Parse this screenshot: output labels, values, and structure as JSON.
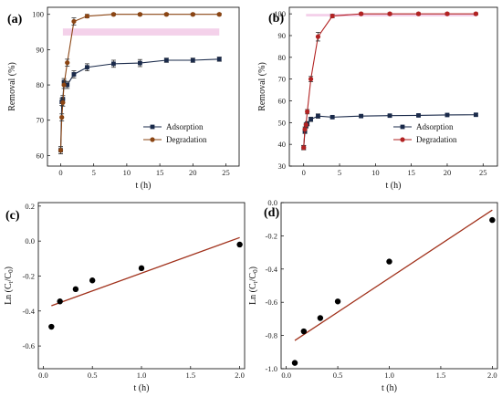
{
  "chart_data": [
    {
      "panel": "(a)",
      "type": "line",
      "xlabel": "t (h)",
      "ylabel": "Removal (%)",
      "xlim": [
        -2,
        27
      ],
      "ylim": [
        57,
        102
      ],
      "xticks": [
        0,
        5,
        10,
        15,
        20,
        25
      ],
      "yticks": [
        60,
        70,
        80,
        90,
        100
      ],
      "legend_position": "lower-right",
      "series": [
        {
          "name": "Adsorption",
          "color": "#1a2a4a",
          "marker": "square",
          "x": [
            0,
            0.17,
            0.33,
            0.5,
            1,
            2,
            4,
            8,
            12,
            16,
            20,
            24
          ],
          "y": [
            61.5,
            75.2,
            76.0,
            80.8,
            80.0,
            83.0,
            85.0,
            86.0,
            86.2,
            87.0,
            87.0,
            87.3
          ],
          "err": [
            1.0,
            1.0,
            1.0,
            1.0,
            1.0,
            1.0,
            1.0,
            1.0,
            1.0,
            0.6,
            0.6,
            0.6
          ]
        },
        {
          "name": "Degradation",
          "color": "#8b4513",
          "marker": "circle",
          "x": [
            0,
            0.17,
            0.33,
            0.5,
            1,
            2,
            4,
            8,
            12,
            16,
            20,
            24
          ],
          "y": [
            61.5,
            70.8,
            75.0,
            80.0,
            86.3,
            98.0,
            99.5,
            100,
            100,
            100,
            100,
            100
          ],
          "err": [
            1.0,
            1.0,
            1.0,
            1.0,
            1.0,
            1.0,
            0.5,
            0.3,
            0.3,
            0.3,
            0.3,
            0.3
          ],
          "band": [
            94,
            96
          ]
        }
      ]
    },
    {
      "panel": "(b)",
      "type": "line",
      "xlabel": "t (h)",
      "ylabel": "Removal (%)",
      "xlim": [
        -2,
        27
      ],
      "ylim": [
        30,
        103
      ],
      "xticks": [
        0,
        5,
        10,
        15,
        20,
        25
      ],
      "yticks": [
        30,
        40,
        50,
        60,
        70,
        80,
        90,
        100
      ],
      "legend_position": "lower-right",
      "series": [
        {
          "name": "Adsorption",
          "color": "#1a2a4a",
          "marker": "square",
          "x": [
            0,
            0.17,
            0.33,
            0.5,
            1,
            2,
            4,
            8,
            12,
            16,
            20,
            24
          ],
          "y": [
            38.5,
            46.0,
            48.5,
            49.5,
            51.5,
            53.0,
            52.5,
            53.0,
            53.2,
            53.3,
            53.5,
            53.6
          ],
          "err": [
            1.0,
            1.0,
            1.0,
            1.0,
            1.0,
            1.0,
            0.6,
            0.5,
            0.5,
            0.5,
            0.5,
            0.5
          ]
        },
        {
          "name": "Degradation",
          "color": "#b22222",
          "marker": "circle",
          "x": [
            0,
            0.17,
            0.33,
            0.5,
            1,
            2,
            4,
            8,
            12,
            16,
            20,
            24
          ],
          "y": [
            38.5,
            47.0,
            49.0,
            55.0,
            70.0,
            89.5,
            99.0,
            100,
            100,
            100,
            100,
            100
          ],
          "err": [
            1.0,
            1.0,
            1.0,
            1.0,
            1.2,
            2.0,
            0.8,
            0.5,
            0.5,
            0.5,
            0.5,
            0.5
          ],
          "band": [
            98.8,
            100
          ]
        }
      ]
    },
    {
      "panel": "(c)",
      "type": "scatter",
      "xlabel": "t (h)",
      "ylabel_main": "Ln (C",
      "ylabel_sub1": "t",
      "ylabel_mid": "/C",
      "ylabel_sub2": "0",
      "ylabel_end": ")",
      "xlim": [
        -0.05,
        2.05
      ],
      "ylim": [
        -0.73,
        0.22
      ],
      "xticks": [
        0.0,
        0.5,
        1.0,
        1.5,
        2.0
      ],
      "xtick_labels": [
        "0.0",
        "0.5",
        "1.0",
        "1.5",
        "2.0"
      ],
      "yticks": [
        -0.6,
        -0.4,
        -0.2,
        0.0,
        0.2
      ],
      "ytick_labels": [
        "-0.6",
        "-0.4",
        "-0.2",
        "0.0",
        "0.2"
      ],
      "points": {
        "x": [
          0.083,
          0.17,
          0.33,
          0.5,
          1.0,
          2.0
        ],
        "y": [
          -0.49,
          -0.345,
          -0.275,
          -0.225,
          -0.155,
          -0.02
        ]
      },
      "fit_line": {
        "x": [
          0.083,
          2.0
        ],
        "y": [
          -0.37,
          0.02
        ],
        "color": "#a0301a"
      }
    },
    {
      "panel": "(d)",
      "type": "scatter",
      "xlabel": "t (h)",
      "ylabel_main": "Ln (C",
      "ylabel_sub1": "t",
      "ylabel_mid": "/C",
      "ylabel_sub2": "0",
      "ylabel_end": ")",
      "xlim": [
        -0.05,
        2.05
      ],
      "ylim": [
        -1.0,
        0.0
      ],
      "xticks": [
        0.0,
        0.5,
        1.0,
        1.5,
        2.0
      ],
      "xtick_labels": [
        "0.0",
        "0.5",
        "1.0",
        "1.5",
        "2.0"
      ],
      "yticks": [
        -1.0,
        -0.8,
        -0.6,
        -0.4,
        -0.2,
        0.0
      ],
      "ytick_labels": [
        "-1.0",
        "-0.8",
        "-0.6",
        "-0.4",
        "-0.2",
        "0.0"
      ],
      "points": {
        "x": [
          0.083,
          0.17,
          0.33,
          0.5,
          1.0,
          2.0
        ],
        "y": [
          -0.965,
          -0.775,
          -0.695,
          -0.595,
          -0.355,
          -0.105
        ]
      },
      "fit_line": {
        "x": [
          0.083,
          2.0
        ],
        "y": [
          -0.83,
          -0.045
        ],
        "color": "#a0301a"
      }
    }
  ]
}
